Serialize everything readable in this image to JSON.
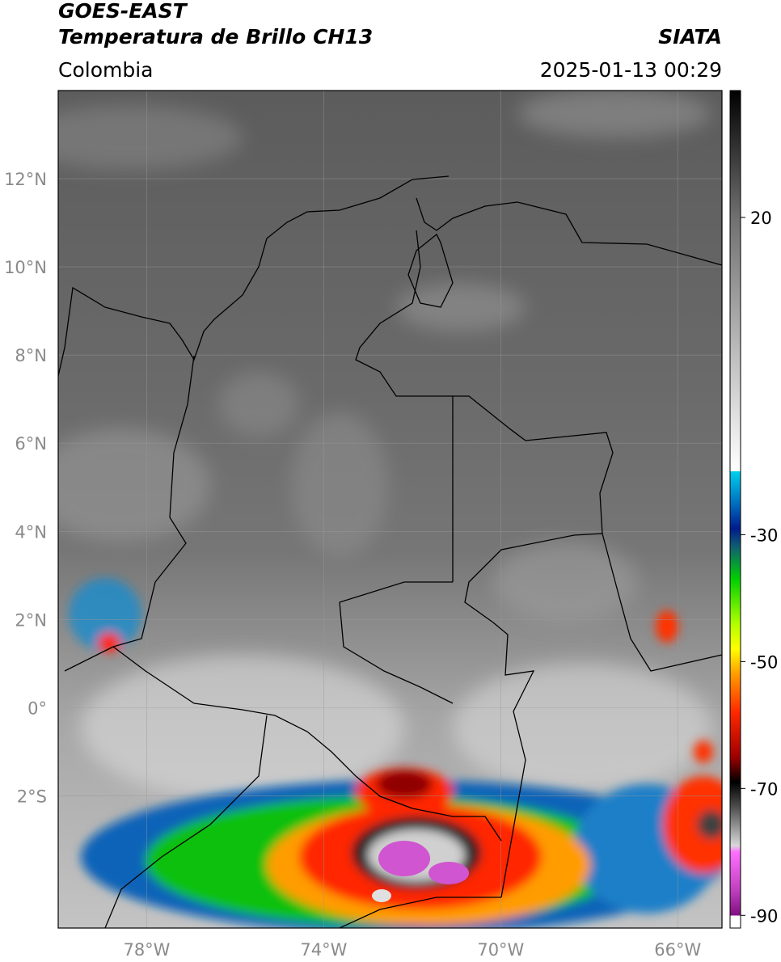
{
  "header": {
    "title": "GOES-EAST",
    "subtitle": "Temperatura de Brillo CH13",
    "region": "Colombia",
    "source": "SIATA",
    "datetime": "2025-01-13 00:29"
  },
  "map": {
    "lon_range": [
      -80,
      -65
    ],
    "lat_range": [
      -5,
      14
    ],
    "xticks": [
      {
        "value": -78,
        "label": "78°W"
      },
      {
        "value": -74,
        "label": "74°W"
      },
      {
        "value": -70,
        "label": "70°W"
      },
      {
        "value": -66,
        "label": "66°W"
      }
    ],
    "yticks": [
      {
        "value": 12,
        "label": "12°N"
      },
      {
        "value": 10,
        "label": "10°N"
      },
      {
        "value": 8,
        "label": "8°N"
      },
      {
        "value": 6,
        "label": "6°N"
      },
      {
        "value": 4,
        "label": "4°N"
      },
      {
        "value": 2,
        "label": "2°N"
      },
      {
        "value": 0,
        "label": "0°"
      },
      {
        "value": -2,
        "label": "2°S"
      }
    ]
  },
  "colorbar": {
    "range": [
      -92,
      40
    ],
    "ticks": [
      20,
      -30,
      -50,
      -70,
      -90
    ],
    "colormap": [
      {
        "value": 40,
        "color": "#000000"
      },
      {
        "value": 20,
        "color": "#707070"
      },
      {
        "value": -20,
        "color": "#ffffff"
      },
      {
        "value": -20,
        "color": "#00d0ee"
      },
      {
        "value": -25,
        "color": "#0070c0"
      },
      {
        "value": -29,
        "color": "#001c8c"
      },
      {
        "value": -32,
        "color": "#106070"
      },
      {
        "value": -37,
        "color": "#00d000"
      },
      {
        "value": -44,
        "color": "#b0ff00"
      },
      {
        "value": -48,
        "color": "#ffff00"
      },
      {
        "value": -52,
        "color": "#ff9c00"
      },
      {
        "value": -58,
        "color": "#ff2800"
      },
      {
        "value": -65,
        "color": "#a00000"
      },
      {
        "value": -69,
        "color": "#000000"
      },
      {
        "value": -73,
        "color": "#505050"
      },
      {
        "value": -79,
        "color": "#d8d8d8"
      },
      {
        "value": -80,
        "color": "#ff70ff"
      },
      {
        "value": -86,
        "color": "#c040c0"
      },
      {
        "value": -90,
        "color": "#801080"
      },
      {
        "value": -90,
        "color": "#ffffff"
      },
      {
        "value": -92,
        "color": "#ffffff"
      }
    ]
  }
}
